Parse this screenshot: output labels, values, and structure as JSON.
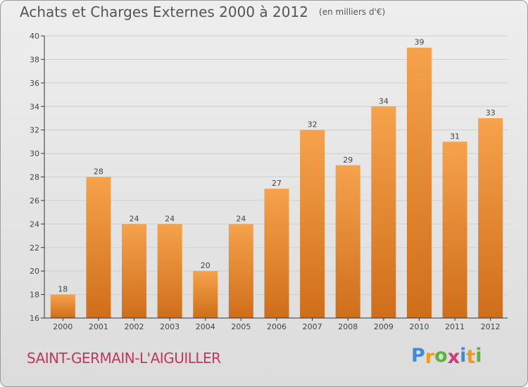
{
  "header": {
    "title": "Achats et Charges Externes 2000 à 2012",
    "subtitle": "(en milliers d'€)"
  },
  "footer": {
    "commune": "SAINT-GERMAIN-L'AIGUILLER",
    "brand": {
      "letters": [
        "P",
        "r",
        "o",
        "x",
        "i",
        "t",
        "i"
      ],
      "colors": [
        "#3a8ed6",
        "#f29a1d",
        "#5bb53c",
        "#d43a73",
        "#3a8ed6",
        "#f29a1d",
        "#5bb53c"
      ]
    }
  },
  "chart_data": {
    "type": "bar",
    "title": "Achats et Charges Externes 2000 à 2012",
    "subtitle": "(en milliers d'€)",
    "xlabel": "",
    "ylabel": "",
    "categories": [
      "2000",
      "2001",
      "2002",
      "2003",
      "2004",
      "2005",
      "2006",
      "2007",
      "2008",
      "2009",
      "2010",
      "2011",
      "2012"
    ],
    "values": [
      18,
      28,
      24,
      24,
      20,
      24,
      27,
      32,
      29,
      34,
      39,
      31,
      33
    ],
    "ylim": [
      16,
      40
    ],
    "yticks": [
      16,
      18,
      20,
      22,
      24,
      26,
      28,
      30,
      32,
      34,
      36,
      38,
      40
    ],
    "grid": true,
    "bar_color_top": "#f6a24c",
    "bar_color_bottom": "#cf6e1a",
    "axis_color": "#333333",
    "grid_color": "#cfcfcf"
  }
}
